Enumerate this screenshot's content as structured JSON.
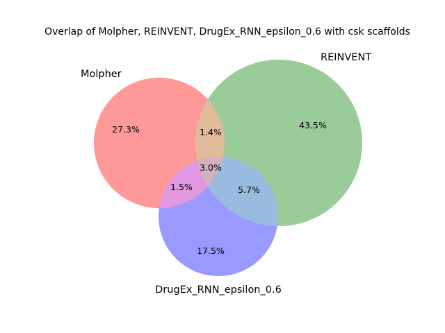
{
  "chart_data": {
    "type": "venn",
    "title": "Overlap of Molpher, REINVENT, DrugEx_RNN_epsilon_0.6 with csk scaffolds",
    "sets": [
      {
        "name": "Molpher",
        "color": "#ff9999"
      },
      {
        "name": "REINVENT",
        "color": "#99cc99"
      },
      {
        "name": "DrugEx_RNN_epsilon_0.6",
        "color": "#9999ff"
      }
    ],
    "regions": {
      "molpher_only": "27.3%",
      "reinvent_only": "43.5%",
      "drugex_only": "17.5%",
      "molpher_reinvent": "1.4%",
      "molpher_drugex": "1.5%",
      "reinvent_drugex": "5.7%",
      "all_three": "3.0%"
    },
    "overlap_colors": {
      "molpher_reinvent": "#e0bb99",
      "molpher_drugex": "#e099e0",
      "reinvent_drugex": "#99bbe0",
      "all_three": "#d4b0c2"
    }
  }
}
